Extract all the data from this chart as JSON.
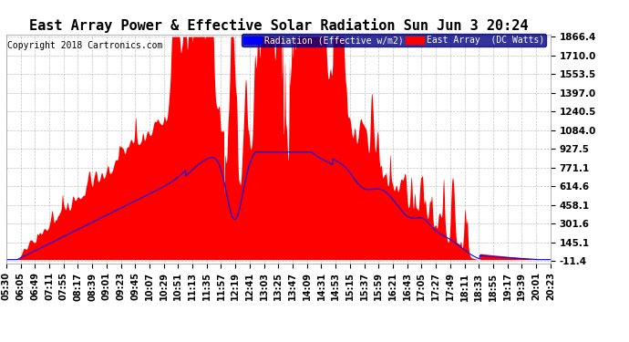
{
  "title": "East Array Power & Effective Solar Radiation Sun Jun 3 20:24",
  "copyright": "Copyright 2018 Cartronics.com",
  "legend_blue": "Radiation (Effective w/m2)",
  "legend_red": "East Array  (DC Watts)",
  "yticks": [
    1866.4,
    1710.0,
    1553.5,
    1397.0,
    1240.5,
    1084.0,
    927.5,
    771.1,
    614.6,
    458.1,
    301.6,
    145.1,
    -11.4
  ],
  "ymin": -11.4,
  "ymax": 1866.4,
  "background_color": "#ffffff",
  "plot_bg_color": "#ffffff",
  "grid_color": "#aaaaaa",
  "red_color": "#ff0000",
  "blue_color": "#0000ff",
  "title_fontsize": 11,
  "tick_fontsize": 7.5,
  "copyright_fontsize": 7,
  "xtick_labels": [
    "05:30",
    "06:05",
    "06:49",
    "07:11",
    "07:55",
    "08:17",
    "08:39",
    "09:01",
    "09:23",
    "09:45",
    "10:07",
    "10:29",
    "10:51",
    "11:13",
    "11:35",
    "11:57",
    "12:19",
    "12:41",
    "13:03",
    "13:25",
    "13:47",
    "14:09",
    "14:31",
    "14:53",
    "15:15",
    "15:37",
    "15:59",
    "16:21",
    "16:43",
    "17:05",
    "17:27",
    "17:49",
    "18:11",
    "18:33",
    "18:55",
    "19:17",
    "19:39",
    "20:01",
    "20:23"
  ]
}
